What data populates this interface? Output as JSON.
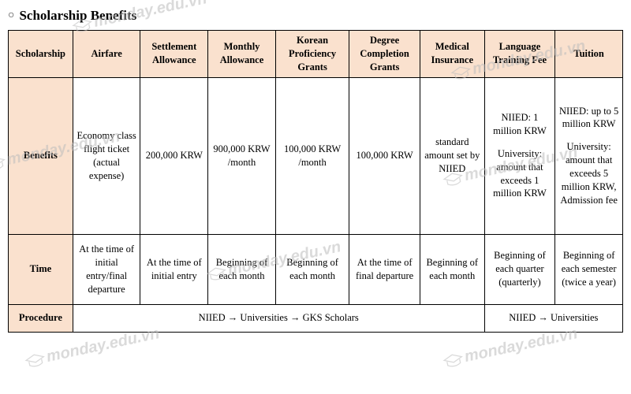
{
  "title": "Scholarship Benefits",
  "bullet": "○",
  "colors": {
    "header_bg": "#fae1ce",
    "border": "#000000",
    "background": "#ffffff",
    "watermark": "#bdbdbd"
  },
  "watermark_text": "monday.edu.vn",
  "table": {
    "columns": [
      "Scholarship",
      "Airfare",
      "Settlement Allowance",
      "Monthly Allowance",
      "Korean Proficiency Grants",
      "Degree Completion Grants",
      "Medical Insurance",
      "Language Training Fee",
      "Tuition"
    ],
    "col_widths_pct": [
      10.5,
      11,
      11,
      11,
      12,
      11.5,
      10.5,
      11.5,
      11
    ],
    "rows": {
      "benefits": {
        "label": "Benefits",
        "cells": [
          "Economy class flight ticket (actual expense)",
          "200,000 KRW",
          "900,000 KRW /month",
          "100,000 KRW /month",
          "100,000 KRW",
          "standard amount set by NIIED",
          "NIIED: 1 million KRW\n\nUniversity: amount that exceeds 1 million KRW",
          "NIIED: up to 5 million KRW\n\nUniversity: amount that exceeds 5 million KRW, Admission fee"
        ]
      },
      "time": {
        "label": "Time",
        "cells": [
          "At the time of initial entry/final departure",
          "At the time of initial entry",
          "Beginning of each month",
          "Beginning of each month",
          "At the time of final departure",
          "Beginning of each month",
          "Beginning of each quarter (quarterly)",
          "Beginning of each semester (twice a year)"
        ]
      },
      "procedure": {
        "label": "Procedure",
        "merged": [
          {
            "span": 6,
            "text": "NIIED → Universities → GKS Scholars"
          },
          {
            "span": 2,
            "text": "NIIED → Universities"
          }
        ]
      }
    }
  }
}
